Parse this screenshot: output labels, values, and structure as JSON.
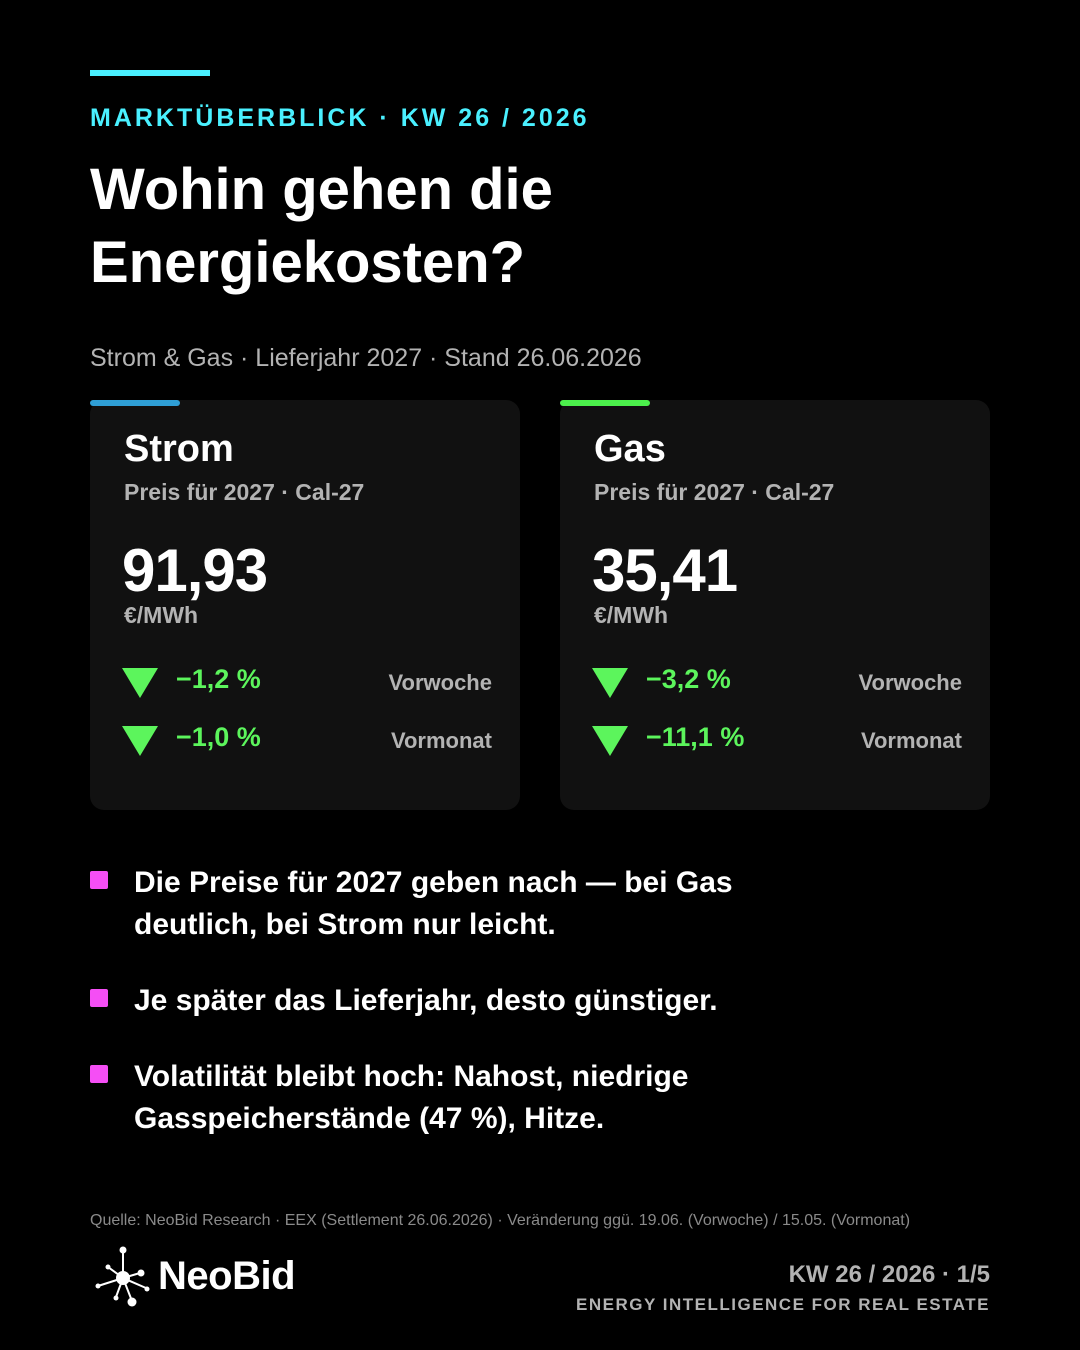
{
  "header": {
    "kicker": "MARKTÜBERBLICK · KW 26 / 2026",
    "title": "Wohin gehen die Energiekosten?",
    "subtitle": "Strom & Gas · Lieferjahr 2027 · Stand 26.06.2026"
  },
  "cards": [
    {
      "name": "Strom",
      "period": "Preis für 2027 · Cal-27",
      "price": "91,93",
      "unit": "€/MWh",
      "changes": [
        {
          "value": "−1,2 %",
          "label": "Vorwoche",
          "direction": "down"
        },
        {
          "value": "−1,0 %",
          "label": "Vormonat",
          "direction": "down"
        }
      ]
    },
    {
      "name": "Gas",
      "period": "Preis für 2027 · Cal-27",
      "price": "35,41",
      "unit": "€/MWh",
      "changes": [
        {
          "value": "−3,2 %",
          "label": "Vorwoche",
          "direction": "down"
        },
        {
          "value": "−11,1 %",
          "label": "Vormonat",
          "direction": "down"
        }
      ]
    }
  ],
  "bullets": [
    "Die Preise für 2027 geben nach — bei Gas deutlich, bei Strom nur leicht.",
    "Je später das Lieferjahr, desto günstiger.",
    "Volatilität bleibt hoch: Nahost, niedrige Gasspeicherstände (47 %), Hitze."
  ],
  "footer": {
    "source": "Quelle: NeoBid Research · EEX (Settlement 26.06.2026) · Veränderung ggü. 19.06. (Vorwoche) / 15.05. (Vormonat)",
    "brand": "NeoBid",
    "page_info": "KW 26 / 2026 · 1/5",
    "tagline": "ENERGY INTELLIGENCE FOR REAL ESTATE"
  },
  "colors": {
    "accent_cyan": "#4af0ff",
    "strom_tab": "#2f9fd6",
    "gas_tab": "#4cf04c",
    "down_green": "#5cf55c",
    "bullet_magenta": "#f54ef5"
  },
  "icons": {
    "change_indicator": "triangle-down-icon",
    "bullet_marker": "square-bullet-icon",
    "brand_logo": "network-node-logo-icon"
  }
}
